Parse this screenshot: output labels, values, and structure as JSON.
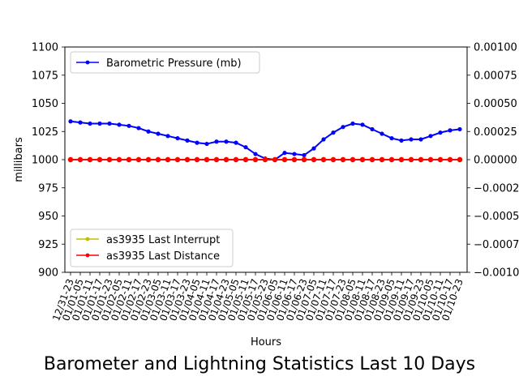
{
  "chart_data": {
    "type": "line",
    "title": "Barometer and Lightning Statistics Last 10 Days",
    "xlabel": "Hours",
    "ylabel": "millibars",
    "ylim": [
      900,
      1100
    ],
    "y2lim": [
      -0.001,
      0.001
    ],
    "yticks": [
      "900",
      "925",
      "950",
      "975",
      "1000",
      "1025",
      "1050",
      "1075",
      "1100"
    ],
    "y2ticks": [
      "−0.0010",
      "−0.00075",
      "−0.00050",
      "−0.00025",
      "0.00000",
      "0.00025",
      "0.00050",
      "0.00075",
      "0.00100"
    ],
    "categories": [
      "12/31-23",
      "01/01-05",
      "01/01-11",
      "01/01-17",
      "01/01-23",
      "01/02-05",
      "01/02-11",
      "01/02-17",
      "01/02-23",
      "01/03-05",
      "01/03-11",
      "01/03-17",
      "01/03-23",
      "01/04-05",
      "01/04-11",
      "01/04-17",
      "01/04-23",
      "01/05-05",
      "01/05-11",
      "01/05-17",
      "01/05-23",
      "01/06-05",
      "01/06-11",
      "01/06-17",
      "01/06-23",
      "01/07-05",
      "01/07-11",
      "01/07-17",
      "01/07-23",
      "01/08-05",
      "01/08-11",
      "01/08-17",
      "01/08-23",
      "01/09-05",
      "01/09-11",
      "01/09-17",
      "01/09-23",
      "01/10-05",
      "01/10-11",
      "01/10-17",
      "01/10-23"
    ],
    "series": [
      {
        "name": "Barometric Pressure (mb)",
        "color": "#0000ff",
        "axis": "left",
        "values": [
          1034,
          1033,
          1032,
          1032,
          1032,
          1031,
          1030,
          1028,
          1025,
          1023,
          1021,
          1019,
          1017,
          1015,
          1014,
          1016,
          1016,
          1015,
          1011,
          1005,
          1001,
          1000,
          1006,
          1005,
          1004,
          1010,
          1018,
          1024,
          1029,
          1032,
          1031,
          1027,
          1023,
          1019,
          1017,
          1018,
          1018,
          1021,
          1024,
          1026,
          1027
        ]
      },
      {
        "name": "as3935 Last Interrupt",
        "color": "#bfbf00",
        "axis": "right",
        "values": [
          0,
          0,
          0,
          0,
          0,
          0,
          0,
          0,
          0,
          0,
          0,
          0,
          0,
          0,
          0,
          0,
          0,
          0,
          0,
          0,
          0,
          0,
          0,
          0,
          0,
          0,
          0,
          0,
          0,
          0,
          0,
          0,
          0,
          0,
          0,
          0,
          0,
          0,
          0,
          0,
          0
        ]
      },
      {
        "name": "as3935 Last Distance",
        "color": "#ff0000",
        "axis": "right",
        "values": [
          0,
          0,
          0,
          0,
          0,
          0,
          0,
          0,
          0,
          0,
          0,
          0,
          0,
          0,
          0,
          0,
          0,
          0,
          0,
          0,
          0,
          0,
          0,
          0,
          0,
          0,
          0,
          0,
          0,
          0,
          0,
          0,
          0,
          0,
          0,
          0,
          0,
          0,
          0,
          0,
          0
        ]
      }
    ],
    "legend_upper": {
      "position": "top-left",
      "entries": [
        "Barometric Pressure (mb)"
      ]
    },
    "legend_lower": {
      "position": "bottom-left",
      "entries": [
        "as3935 Last Interrupt",
        "as3935 Last Distance"
      ]
    },
    "grid": false
  }
}
